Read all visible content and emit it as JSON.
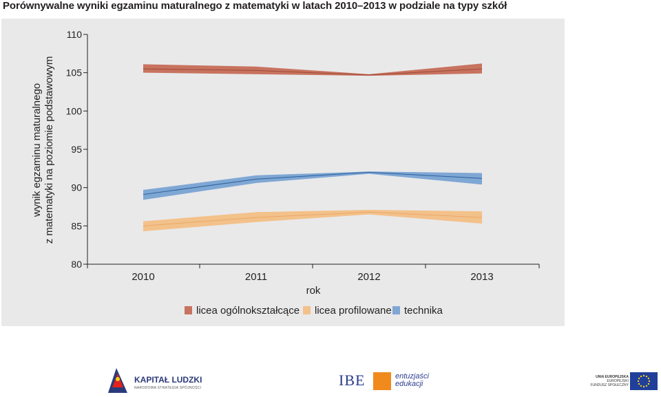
{
  "page": {
    "title": "Porównywalne wyniki egzaminu maturalnego z matematyki w latach 2010–2013 w podziale na typy szkół"
  },
  "chart_data": {
    "type": "line",
    "title": "",
    "xlabel": "rok",
    "ylabel_lines": [
      "wynik egzaminu maturalnego",
      "z matematyki na poziomie podstawowym"
    ],
    "x": [
      2010,
      2011,
      2012,
      2013
    ],
    "x_tick_labels": [
      "2010",
      "2011",
      "2012",
      "2013"
    ],
    "ylim": [
      80,
      110
    ],
    "y_ticks": [
      80,
      85,
      90,
      95,
      100,
      105,
      110
    ],
    "y_tick_labels": [
      "80",
      "85",
      "90",
      "95",
      "100",
      "105",
      "110"
    ],
    "grid": false,
    "legend_position": "bottom",
    "series": [
      {
        "name": "licea ogólnokształcące",
        "values": [
          105.5,
          105.3,
          104.7,
          105.5
        ],
        "lower": [
          105.0,
          104.8,
          104.6,
          104.9
        ],
        "upper": [
          106.1,
          105.8,
          104.8,
          106.2
        ],
        "band_color": "#c8735f",
        "line_color": "#9c4a38"
      },
      {
        "name": "licea profilowane",
        "values": [
          85.0,
          86.1,
          86.8,
          86.1
        ],
        "lower": [
          84.3,
          85.5,
          86.5,
          85.3
        ],
        "upper": [
          85.6,
          86.8,
          87.1,
          86.9
        ],
        "band_color": "#f3c18a",
        "line_color": "#e9a86b"
      },
      {
        "name": "technika",
        "values": [
          89.1,
          91.1,
          92.0,
          91.2
        ],
        "lower": [
          88.4,
          90.6,
          91.8,
          90.4
        ],
        "upper": [
          89.7,
          91.6,
          92.1,
          91.9
        ],
        "band_color": "#7fa7d4",
        "line_color": "#2a5f9a"
      }
    ]
  },
  "footer": {
    "logo1_name": "KAPITAŁ LUDZKI",
    "logo1_sub": "NARODOWA STRATEGIA SPÓJNOŚCI",
    "logo2_name": "IBE",
    "logo2_tag_line1": "entuzjaści",
    "logo2_tag_line2": "edukacji",
    "logo3_line1": "UNIA EUROPEJSKA",
    "logo3_line2": "EUROPEJSKI",
    "logo3_line3": "FUNDUSZ SPOŁECZNY"
  }
}
